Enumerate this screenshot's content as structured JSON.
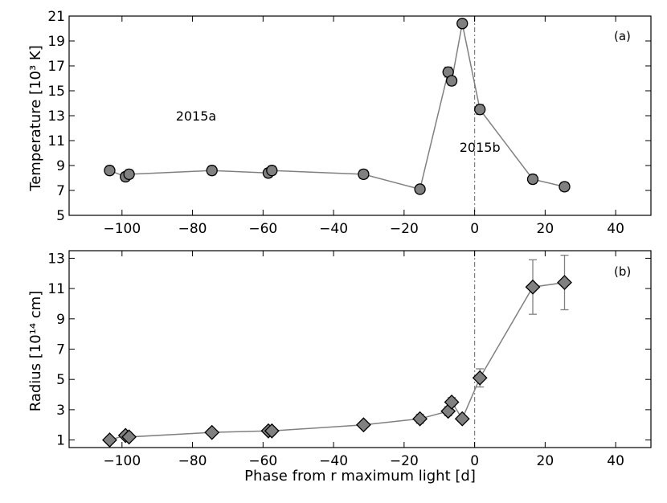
{
  "chart_data": [
    {
      "type": "scatter",
      "panel_label": "(a)",
      "ylabel": "Temperature [10³ K]",
      "xlim": [
        -115,
        50
      ],
      "ylim": [
        5,
        21
      ],
      "x_ticks": [
        -100,
        -80,
        -60,
        -40,
        -20,
        0,
        20,
        40
      ],
      "y_ticks": [
        5,
        7,
        9,
        11,
        13,
        15,
        17,
        19,
        21
      ],
      "grid": false,
      "marker": "circle",
      "marker_color": "#808080",
      "line_color": "#808080",
      "vline_x": 0,
      "annotations": [
        {
          "text": "2015a",
          "x": -79,
          "y": 12.6
        },
        {
          "text": "2015b",
          "x": 1.5,
          "y": 10.1
        }
      ],
      "series": [
        {
          "x": [
            -103.5,
            -99.0,
            -98.0,
            -74.5,
            -58.5,
            -57.5,
            -31.5,
            -15.5,
            -7.5,
            -6.5,
            -3.5,
            1.5,
            16.5,
            25.5
          ],
          "y": [
            8.6,
            8.1,
            8.3,
            8.6,
            8.4,
            8.6,
            8.3,
            7.1,
            16.5,
            15.8,
            20.4,
            13.5,
            7.9,
            7.3
          ],
          "err": [
            0.35,
            0.35,
            0.35,
            0.35,
            0.35,
            0.35,
            0.35,
            0.3,
            0.4,
            0.35,
            0.3,
            0.4,
            0.35,
            0.35
          ]
        }
      ]
    },
    {
      "type": "scatter",
      "panel_label": "(b)",
      "xlabel": "Phase from r maximum light [d]",
      "ylabel": "Radius [10¹⁴ cm]",
      "xlim": [
        -115,
        50
      ],
      "ylim": [
        0.5,
        13.5
      ],
      "x_ticks": [
        -100,
        -80,
        -60,
        -40,
        -20,
        0,
        20,
        40
      ],
      "y_ticks": [
        1,
        3,
        5,
        7,
        9,
        11,
        13
      ],
      "grid": false,
      "marker": "diamond",
      "marker_color": "#808080",
      "line_color": "#808080",
      "vline_x": 0,
      "series": [
        {
          "x": [
            -103.5,
            -99.0,
            -98.0,
            -74.5,
            -58.5,
            -57.5,
            -31.5,
            -15.5,
            -7.5,
            -6.5,
            -3.5,
            1.5,
            16.5,
            25.5
          ],
          "y": [
            1.0,
            1.3,
            1.2,
            1.5,
            1.6,
            1.6,
            2.0,
            2.4,
            2.9,
            3.5,
            2.4,
            5.1,
            11.1,
            11.4
          ],
          "err": [
            0.1,
            0.1,
            0.1,
            0.15,
            0.15,
            0.15,
            0.2,
            0.3,
            0.3,
            0.3,
            0.2,
            0.6,
            1.8,
            1.8
          ]
        }
      ]
    }
  ]
}
